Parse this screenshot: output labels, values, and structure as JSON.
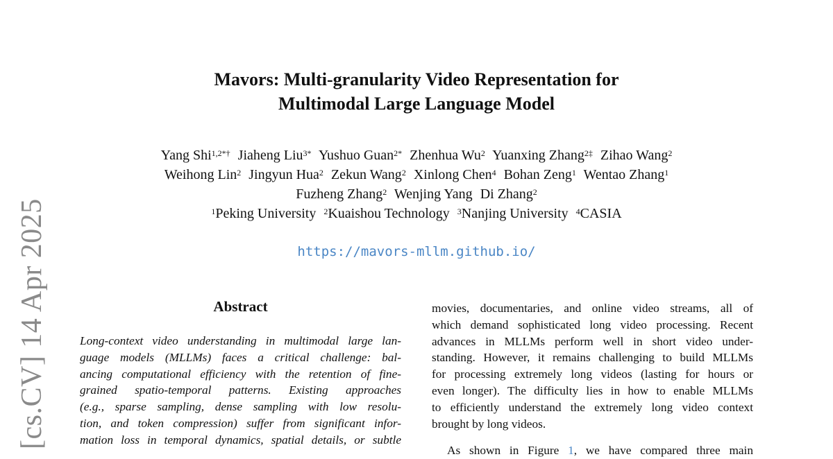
{
  "arxiv_stamp": "[cs.CV]  14 Apr 2025",
  "title_lines": [
    "Mavors: Multi-granularity Video Representation for",
    "Multimodal Large Language Model"
  ],
  "authors": {
    "line1": [
      {
        "name": "Yang Shi",
        "sup": "1,2*†"
      },
      {
        "name": "Jiaheng Liu",
        "sup": "3*"
      },
      {
        "name": "Yushuo Guan",
        "sup": "2*"
      },
      {
        "name": "Zhenhua Wu",
        "sup": "2"
      },
      {
        "name": "Yuanxing Zhang",
        "sup": "2‡"
      },
      {
        "name": "Zihao Wang",
        "sup": "2"
      }
    ],
    "line2": [
      {
        "name": "Weihong Lin",
        "sup": "2"
      },
      {
        "name": "Jingyun Hua",
        "sup": "2"
      },
      {
        "name": "Zekun Wang",
        "sup": "2"
      },
      {
        "name": "Xinlong Chen",
        "sup": "4"
      },
      {
        "name": "Bohan Zeng",
        "sup": "1"
      },
      {
        "name": "Wentao Zhang",
        "sup": "1"
      }
    ],
    "line3": [
      {
        "name": "Fuzheng Zhang",
        "sup": "2"
      },
      {
        "name": "Wenjing Yang",
        "sup": ""
      },
      {
        "name": "Di Zhang",
        "sup": "2"
      }
    ],
    "affiliations": [
      {
        "sup": "1",
        "name": "Peking University"
      },
      {
        "sup": "2",
        "name": "Kuaishou Technology"
      },
      {
        "sup": "3",
        "name": "Nanjing University"
      },
      {
        "sup": "4",
        "name": "CASIA"
      }
    ]
  },
  "url": "https://mavors-mllm.github.io/",
  "abstract": {
    "heading": "Abstract",
    "lines": [
      "Long-context video understanding in multimodal large lan-",
      "guage models (MLLMs) faces a critical challenge: bal-",
      "ancing computational efficiency with the retention of fine-",
      "grained spatio-temporal patterns.   Existing approaches",
      "(e.g., sparse sampling, dense sampling with low resolu-",
      "tion, and token compression) suffer from significant infor-",
      "mation loss in temporal dynamics, spatial details, or subtle"
    ]
  },
  "intro": {
    "lines": [
      "movies, documentaries, and online video streams, all of",
      "which demand sophisticated long video processing. Recent",
      "advances in MLLMs perform well in short video under-",
      "standing. However, it remains challenging to build MLLMs",
      "for processing extremely long videos (lasting for hours or",
      "even longer). The difficulty lies in how to enable MLLMs",
      "to efficiently understand the extremely long video context",
      "brought by long videos."
    ],
    "next_para": {
      "before": "As shown in Figure ",
      "ref": "1",
      "after": ", we have compared three main"
    }
  }
}
